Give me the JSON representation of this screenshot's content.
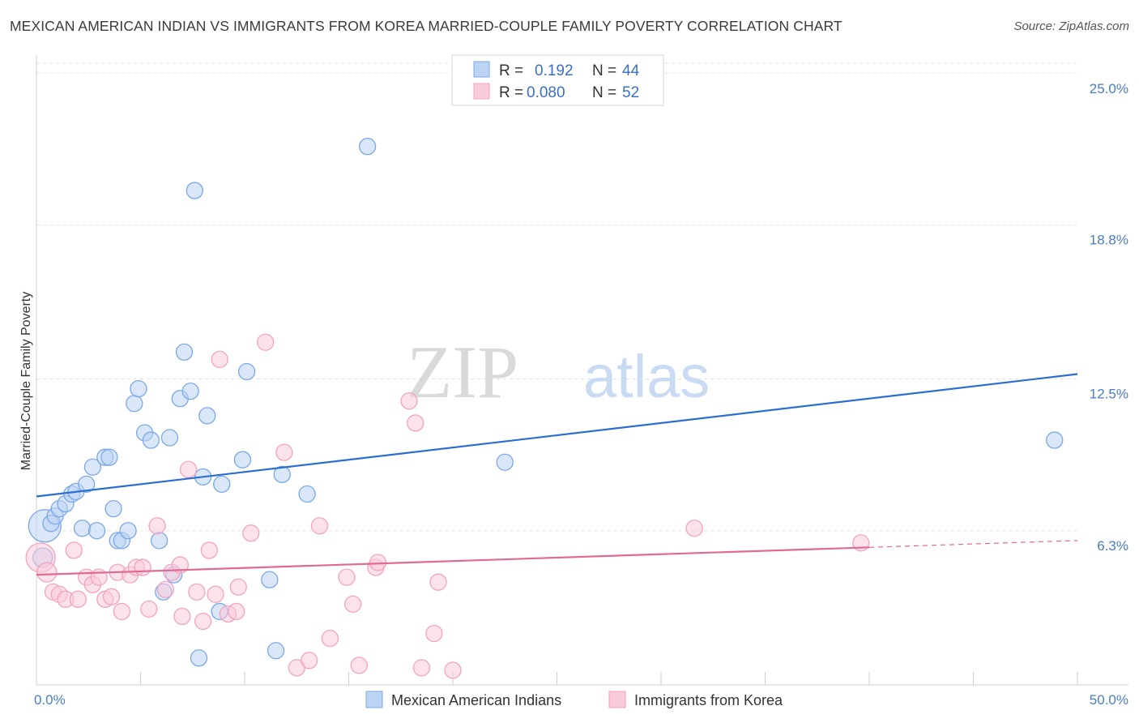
{
  "title": "MEXICAN AMERICAN INDIAN VS IMMIGRANTS FROM KOREA MARRIED-COUPLE FAMILY POVERTY CORRELATION CHART",
  "source": "Source: ZipAtlas.com",
  "watermark": {
    "zip": "ZIP",
    "atlas": "atlas"
  },
  "chart_data": {
    "type": "scatter",
    "title": "MEXICAN AMERICAN INDIAN VS IMMIGRANTS FROM KOREA MARRIED-COUPLE FAMILY POVERTY CORRELATION CHART",
    "xlabel": "",
    "ylabel": "Married-Couple Family Poverty",
    "xlim": [
      0,
      50
    ],
    "ylim": [
      0,
      25.6
    ],
    "x_tick_labels": [
      "0.0%",
      "50.0%"
    ],
    "y_ticks": [
      6.3,
      12.5,
      18.8,
      25.0
    ],
    "y_tick_labels": [
      "6.3%",
      "12.5%",
      "18.8%",
      "25.0%"
    ],
    "grid": true,
    "legend_position": "top-center",
    "stats": [
      {
        "r_label": "R =",
        "r_value": "0.192",
        "n_label": "N =",
        "n_value": "44"
      },
      {
        "r_label": "R =",
        "r_value": "0.080",
        "n_label": "N =",
        "n_value": "52"
      }
    ],
    "series": [
      {
        "name": "Mexican American Indians",
        "color": "#7aa7e6",
        "line_color": "#2a6fd0",
        "trend": {
          "x0": 0,
          "y0": 7.7,
          "x1": 50,
          "y1": 12.7,
          "dashed_from": null
        },
        "points": [
          [
            0.4,
            6.5,
            20
          ],
          [
            0.7,
            6.6,
            10
          ],
          [
            0.9,
            6.9,
            10
          ],
          [
            1.1,
            7.2,
            10
          ],
          [
            1.4,
            7.4,
            10
          ],
          [
            1.7,
            7.8,
            10
          ],
          [
            1.9,
            7.9,
            10
          ],
          [
            2.4,
            8.2,
            10
          ],
          [
            2.7,
            8.9,
            10
          ],
          [
            3.3,
            9.3,
            10
          ],
          [
            3.5,
            9.3,
            10
          ],
          [
            3.7,
            7.2,
            10
          ],
          [
            2.2,
            6.4,
            10
          ],
          [
            2.9,
            6.3,
            10
          ],
          [
            3.9,
            5.9,
            10
          ],
          [
            4.1,
            5.9,
            10
          ],
          [
            4.4,
            6.3,
            10
          ],
          [
            4.7,
            11.5,
            10
          ],
          [
            4.9,
            12.1,
            10
          ],
          [
            5.2,
            10.3,
            10
          ],
          [
            5.5,
            10.0,
            10
          ],
          [
            5.9,
            5.9,
            10
          ],
          [
            6.4,
            10.1,
            10
          ],
          [
            6.6,
            4.5,
            10
          ],
          [
            6.9,
            11.7,
            10
          ],
          [
            7.1,
            13.6,
            10
          ],
          [
            7.4,
            12.0,
            10
          ],
          [
            7.6,
            20.2,
            10
          ],
          [
            8.0,
            8.5,
            10
          ],
          [
            8.2,
            11.0,
            10
          ],
          [
            8.9,
            8.2,
            10
          ],
          [
            9.9,
            9.2,
            10
          ],
          [
            10.1,
            12.8,
            10
          ],
          [
            11.2,
            4.3,
            10
          ],
          [
            11.5,
            1.4,
            10
          ],
          [
            11.8,
            8.6,
            10
          ],
          [
            13.0,
            7.8,
            10
          ],
          [
            15.9,
            22.0,
            10
          ],
          [
            22.5,
            9.1,
            10
          ],
          [
            48.9,
            10.0,
            10
          ],
          [
            6.1,
            3.8,
            10
          ],
          [
            8.8,
            3.0,
            10
          ],
          [
            7.8,
            1.1,
            10
          ],
          [
            0.3,
            5.2,
            12
          ]
        ]
      },
      {
        "name": "Immigrants from Korea",
        "color": "#f2a3bf",
        "line_color": "#e06a94",
        "trend": {
          "x0": 0,
          "y0": 4.5,
          "x1": 50,
          "y1": 5.9,
          "dashed_from": 40
        },
        "points": [
          [
            0.2,
            5.2,
            18
          ],
          [
            0.5,
            4.6,
            12
          ],
          [
            0.8,
            3.8,
            10
          ],
          [
            1.1,
            3.7,
            10
          ],
          [
            1.4,
            3.5,
            10
          ],
          [
            1.8,
            5.5,
            10
          ],
          [
            2.0,
            3.5,
            10
          ],
          [
            2.4,
            4.4,
            10
          ],
          [
            2.7,
            4.1,
            10
          ],
          [
            3.0,
            4.4,
            10
          ],
          [
            3.3,
            3.5,
            10
          ],
          [
            3.6,
            3.6,
            10
          ],
          [
            3.9,
            4.6,
            10
          ],
          [
            4.1,
            3.0,
            10
          ],
          [
            4.5,
            4.5,
            10
          ],
          [
            4.8,
            4.8,
            10
          ],
          [
            5.1,
            4.8,
            10
          ],
          [
            5.4,
            3.1,
            10
          ],
          [
            5.8,
            6.5,
            10
          ],
          [
            6.2,
            3.9,
            10
          ],
          [
            6.5,
            4.6,
            10
          ],
          [
            6.9,
            4.9,
            10
          ],
          [
            7.0,
            2.8,
            10
          ],
          [
            7.3,
            8.8,
            10
          ],
          [
            7.7,
            3.8,
            10
          ],
          [
            8.0,
            2.6,
            10
          ],
          [
            8.3,
            5.5,
            10
          ],
          [
            8.6,
            3.7,
            10
          ],
          [
            8.8,
            13.3,
            10
          ],
          [
            9.2,
            2.9,
            10
          ],
          [
            9.6,
            3.0,
            10
          ],
          [
            9.7,
            4.0,
            10
          ],
          [
            10.3,
            6.2,
            10
          ],
          [
            11.0,
            14.0,
            10
          ],
          [
            11.9,
            9.5,
            10
          ],
          [
            12.5,
            0.7,
            10
          ],
          [
            13.1,
            1.0,
            10
          ],
          [
            13.6,
            6.5,
            10
          ],
          [
            14.1,
            1.9,
            10
          ],
          [
            14.9,
            4.4,
            10
          ],
          [
            15.2,
            3.3,
            10
          ],
          [
            15.5,
            0.8,
            10
          ],
          [
            16.3,
            4.8,
            10
          ],
          [
            16.4,
            5.0,
            10
          ],
          [
            17.9,
            11.6,
            10
          ],
          [
            18.2,
            10.7,
            10
          ],
          [
            18.5,
            0.7,
            10
          ],
          [
            19.1,
            2.1,
            10
          ],
          [
            19.3,
            4.2,
            10
          ],
          [
            20.0,
            0.6,
            10
          ],
          [
            31.6,
            6.4,
            10
          ],
          [
            39.6,
            5.8,
            10
          ]
        ]
      }
    ]
  }
}
